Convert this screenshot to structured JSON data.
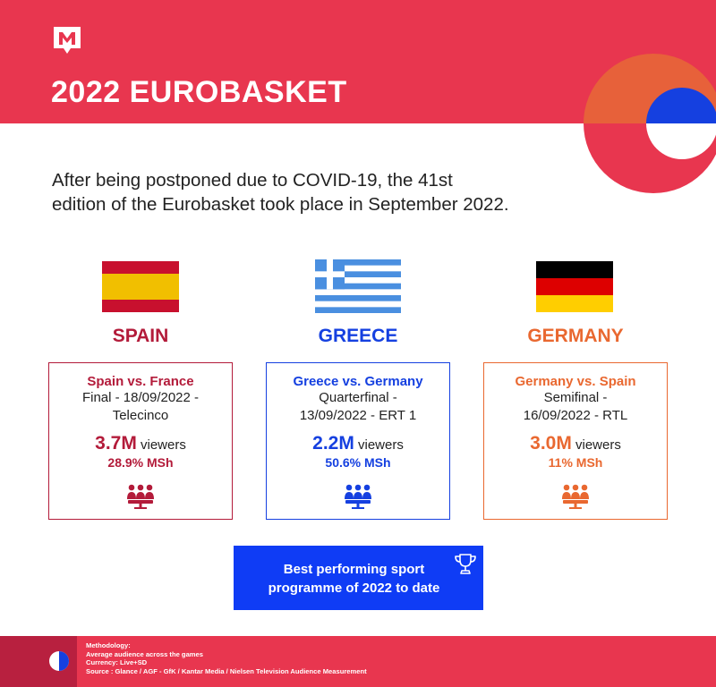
{
  "header": {
    "title": "2022 EUROBASKET",
    "logo_icon": "m-logo-icon"
  },
  "intro": {
    "line1": "After being postponed due to COVID-19, the 41st",
    "line2": "edition of the Eurobasket took place in September 2022."
  },
  "countries": [
    {
      "name": "SPAIN",
      "color": "#b31b3a",
      "match": "Spain vs. France",
      "detail_line1": "Final - 18/09/2022 -",
      "detail_line2": "Telecinco",
      "viewers_value": "3.7M",
      "viewers_label": "viewers",
      "msh": "28.9% MSh",
      "icon": "audience-icon"
    },
    {
      "name": "GREECE",
      "color": "#1540e0",
      "match": "Greece vs. Germany",
      "detail_line1": "Quarterfinal -",
      "detail_line2": "13/09/2022 - ERT 1",
      "viewers_value": "2.2M",
      "viewers_label": "viewers",
      "msh": "50.6% MSh",
      "icon": "audience-icon"
    },
    {
      "name": "GERMANY",
      "color": "#e96830",
      "match": "Germany vs. Spain",
      "detail_line1": "Semifinal -",
      "detail_line2": "16/09/2022 - RTL",
      "viewers_value": "3.0M",
      "viewers_label": "viewers",
      "msh": "11% MSh",
      "icon": "audience-icon"
    }
  ],
  "best": {
    "line1": "Best performing sport",
    "line2": "programme of 2022 to date",
    "icon": "trophy-icon"
  },
  "footer": {
    "line1": "Methodology:",
    "line2": "Average audience across the games",
    "line3": "Currency: Live+SD",
    "line4": "Source : Glance / AGF - GfK / Kantar Media / Nielsen Television Audience Measurement"
  },
  "colors": {
    "header_red": "#e8364f",
    "footer_dark": "#b8203f",
    "best_blue": "#0f3cf5",
    "orange": "#e7613a"
  }
}
